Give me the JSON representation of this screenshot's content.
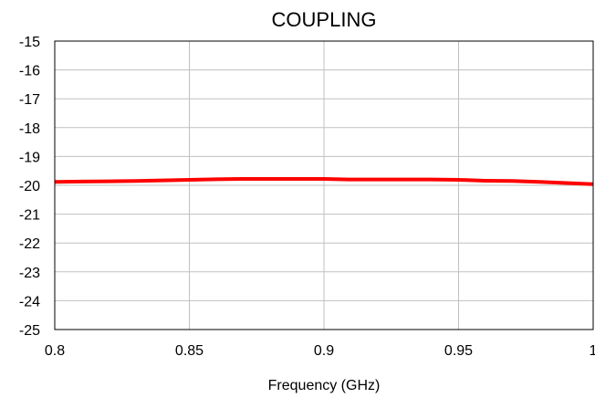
{
  "chart_data": {
    "type": "line",
    "title": "COUPLING",
    "xlabel": "Frequency (GHz)",
    "ylabel": "",
    "xlim": [
      0.8,
      1.0
    ],
    "ylim": [
      -25,
      -15
    ],
    "x_ticks": [
      "0.8",
      "0.85",
      "0.9",
      "0.95",
      "1"
    ],
    "y_ticks": [
      "-15",
      "-16",
      "-17",
      "-18",
      "-19",
      "-20",
      "-21",
      "-22",
      "-23",
      "-24",
      "-25"
    ],
    "grid": true,
    "legend": "none",
    "series": [
      {
        "color": "#ff0000",
        "x": [
          0.8,
          0.81,
          0.82,
          0.83,
          0.84,
          0.85,
          0.86,
          0.87,
          0.88,
          0.89,
          0.9,
          0.91,
          0.92,
          0.93,
          0.94,
          0.95,
          0.96,
          0.97,
          0.98,
          0.99,
          1.0
        ],
        "y": [
          -19.88,
          -19.87,
          -19.86,
          -19.85,
          -19.83,
          -19.81,
          -19.79,
          -19.78,
          -19.78,
          -19.78,
          -19.78,
          -19.8,
          -19.8,
          -19.8,
          -19.8,
          -19.81,
          -19.84,
          -19.85,
          -19.88,
          -19.92,
          -19.96
        ]
      }
    ]
  }
}
